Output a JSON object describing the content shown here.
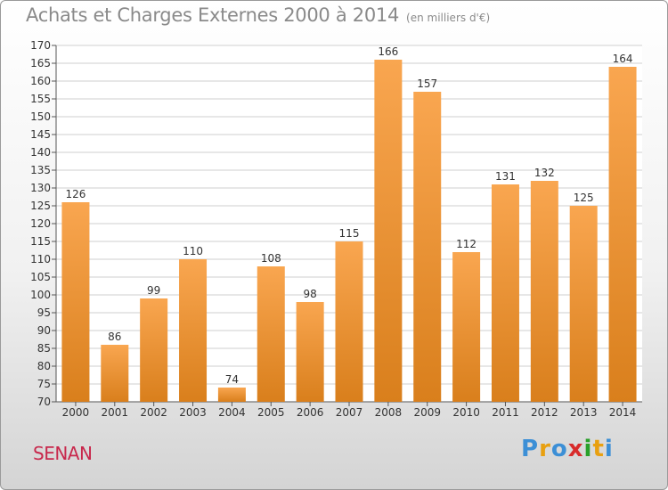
{
  "title": "Achats et Charges Externes 2000 à 2014",
  "subtitle": "(en milliers d'€)",
  "commune": "SENAN",
  "logo": {
    "letters": [
      "P",
      "r",
      "o",
      "x",
      "i",
      "t",
      "i"
    ],
    "colors": [
      "#3c8fd6",
      "#e8a010",
      "#3c8fd6",
      "#d82b2b",
      "#2aa02a",
      "#e8a010",
      "#3c8fd6"
    ]
  },
  "colors": {
    "bar_light": "#f9a650",
    "bar_dark": "#d97f1c",
    "grid": "#cfcfcf"
  },
  "chart_data": {
    "type": "bar",
    "categories": [
      "2000",
      "2001",
      "2002",
      "2003",
      "2004",
      "2005",
      "2006",
      "2007",
      "2008",
      "2009",
      "2010",
      "2011",
      "2012",
      "2013",
      "2014"
    ],
    "values": [
      126,
      86,
      99,
      110,
      74,
      108,
      98,
      115,
      166,
      157,
      112,
      131,
      132,
      125,
      164
    ],
    "ylim": [
      70,
      170
    ],
    "yticks": [
      70,
      75,
      80,
      85,
      90,
      95,
      100,
      105,
      110,
      115,
      120,
      125,
      130,
      135,
      140,
      145,
      150,
      155,
      160,
      165,
      170
    ],
    "grid": true
  }
}
